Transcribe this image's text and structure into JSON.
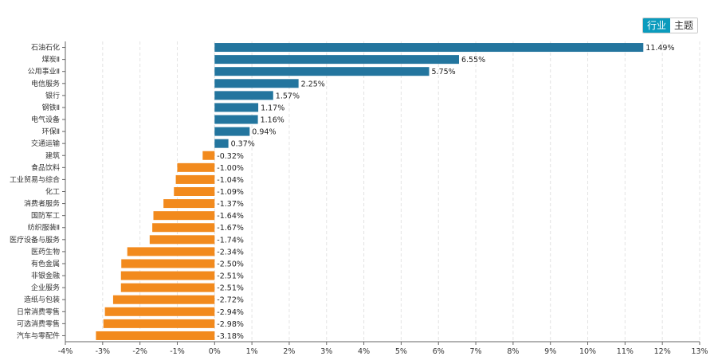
{
  "toggle": {
    "industry_label": "行业",
    "theme_label": "主题",
    "active": "industry"
  },
  "colors": {
    "positive": "#23759e",
    "negative": "#f28a1d",
    "grid": "#e3e3e3",
    "axis": "#666666"
  },
  "chart_data": {
    "type": "bar",
    "orientation": "horizontal",
    "title": "",
    "xlabel": "",
    "ylabel": "",
    "xlim": [
      -4,
      13
    ],
    "x_ticks": [
      -4,
      -3,
      -2,
      -1,
      0,
      1,
      2,
      3,
      4,
      5,
      6,
      7,
      8,
      9,
      10,
      11,
      12,
      13
    ],
    "x_tick_labels": [
      "-4%",
      "-3%",
      "-2%",
      "-1%",
      "0%",
      "1%",
      "2%",
      "3%",
      "4%",
      "5%",
      "6%",
      "7%",
      "8%",
      "9%",
      "10%",
      "11%",
      "12%",
      "13%"
    ],
    "categories": [
      "石油石化",
      "煤炭Ⅱ",
      "公用事业Ⅱ",
      "电信服务",
      "银行",
      "钢铁Ⅱ",
      "电气设备",
      "环保Ⅱ",
      "交通运输",
      "建筑",
      "食品饮料",
      "工业贸易与综合",
      "化工",
      "消费者服务",
      "国防军工",
      "纺织服装Ⅱ",
      "医疗设备与服务",
      "医药生物",
      "有色金属",
      "非银金融",
      "企业服务",
      "造纸与包装",
      "日常消费零售",
      "可选消费零售",
      "汽车与零配件"
    ],
    "values": [
      11.49,
      6.55,
      5.75,
      2.25,
      1.57,
      1.17,
      1.16,
      0.94,
      0.37,
      -0.32,
      -1.0,
      -1.04,
      -1.09,
      -1.37,
      -1.64,
      -1.67,
      -1.74,
      -2.34,
      -2.5,
      -2.51,
      -2.51,
      -2.72,
      -2.94,
      -2.98,
      -3.18
    ],
    "value_labels": [
      "11.49%",
      "6.55%",
      "5.75%",
      "2.25%",
      "1.57%",
      "1.17%",
      "1.16%",
      "0.94%",
      "0.37%",
      "-0.32%",
      "-1.00%",
      "-1.04%",
      "-1.09%",
      "-1.37%",
      "-1.64%",
      "-1.67%",
      "-1.74%",
      "-2.34%",
      "-2.50%",
      "-2.51%",
      "-2.51%",
      "-2.72%",
      "-2.94%",
      "-2.98%",
      "-3.18%"
    ],
    "grid": true,
    "legend": "none"
  }
}
